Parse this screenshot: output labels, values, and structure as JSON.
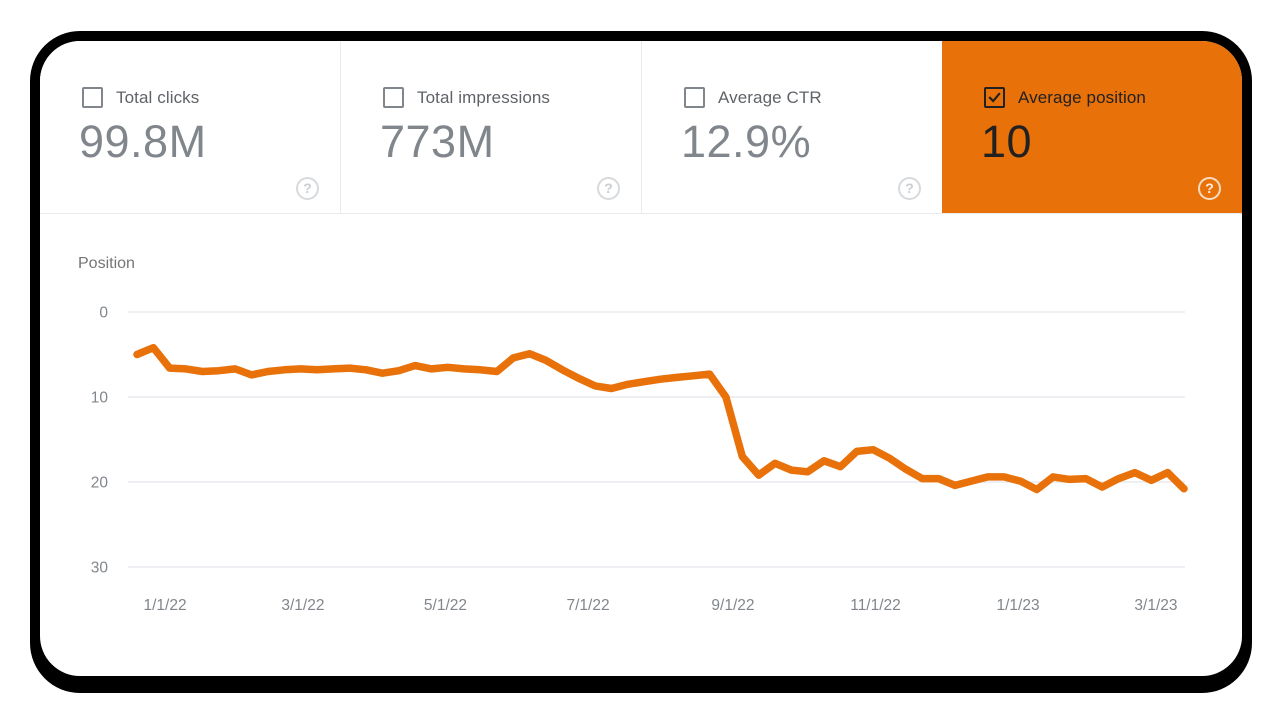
{
  "panel": {
    "name": "Search performance panel"
  },
  "cards": [
    {
      "label": "Total clicks",
      "value": "99.8M",
      "checked": false,
      "selected": false
    },
    {
      "label": "Total impressions",
      "value": "773M",
      "checked": false,
      "selected": false
    },
    {
      "label": "Average CTR",
      "value": "12.9%",
      "checked": false,
      "selected": false
    },
    {
      "label": "Average position",
      "value": "10",
      "checked": true,
      "selected": true
    }
  ],
  "icons": {
    "help_glyph": "?",
    "checkbox_checked": "checkmark",
    "checkbox_unchecked": "empty-square"
  },
  "colors": {
    "accent_orange": "#e8710a",
    "selected_card_text": "#212121",
    "card_label_gray": "#5f6368",
    "card_value_gray": "#80868b",
    "axis_text_gray": "#80868b",
    "chart_title_gray": "#757575",
    "gridline_gray": "#e8eaed",
    "divider_gray": "#e8eaed",
    "window_border": "#000000",
    "background": "#ffffff"
  },
  "chart_data": {
    "type": "line",
    "title": "",
    "ylabel": "Position",
    "y_ticks": [
      0,
      10,
      20,
      30
    ],
    "ylim": [
      0,
      30
    ],
    "y_axis_inverted": true,
    "grid": true,
    "legend_position": "none",
    "x_tick_labels": [
      "1/1/22",
      "3/1/22",
      "5/1/22",
      "7/1/22",
      "9/1/22",
      "11/1/22",
      "1/1/23",
      "3/1/23"
    ],
    "x_tick_day_offsets": [
      12,
      71,
      132,
      193,
      255,
      316,
      377,
      436
    ],
    "x_total_days": 448,
    "x_interval": "weekly",
    "series": [
      {
        "name": "Average position",
        "color": "#e8710a",
        "values": [
          5.0,
          4.2,
          6.6,
          6.7,
          7.0,
          6.9,
          6.7,
          7.4,
          7.0,
          6.8,
          6.7,
          6.8,
          6.7,
          6.6,
          6.8,
          7.2,
          6.9,
          6.3,
          6.7,
          6.5,
          6.7,
          6.8,
          7.0,
          5.4,
          4.9,
          5.7,
          6.8,
          7.8,
          8.7,
          9.0,
          8.5,
          8.2,
          7.9,
          7.7,
          7.5,
          7.3,
          10.0,
          17.0,
          19.2,
          17.8,
          18.6,
          18.8,
          17.5,
          18.2,
          16.4,
          16.2,
          17.2,
          18.5,
          19.6,
          19.6,
          20.4,
          19.9,
          19.4,
          19.4,
          19.9,
          20.9,
          19.4,
          19.7,
          19.6,
          20.6,
          19.6,
          18.9,
          19.8,
          18.9,
          20.8
        ]
      }
    ]
  }
}
